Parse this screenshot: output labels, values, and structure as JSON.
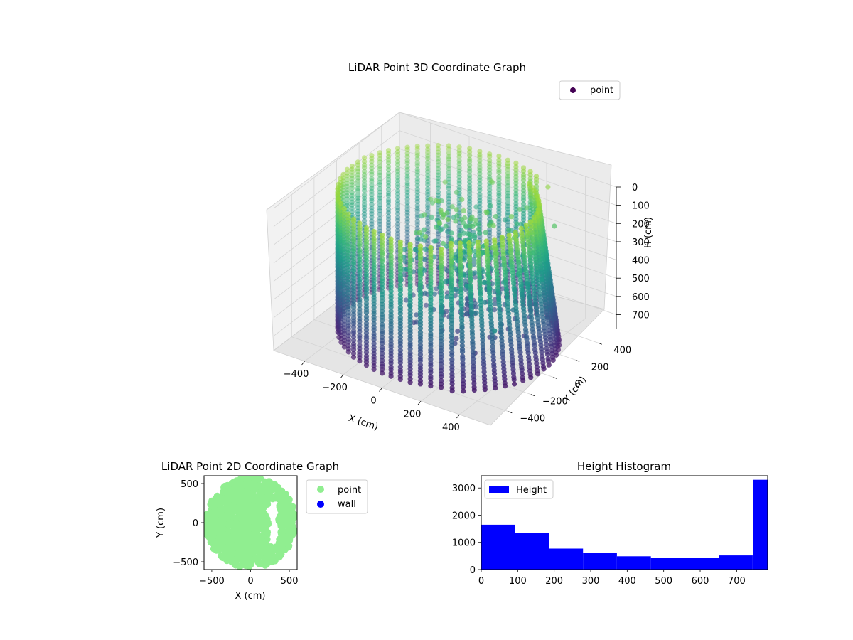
{
  "figure": {
    "chart_3d_title": "LiDAR Point 3D Coordinate Graph",
    "chart_2d_title": "LiDAR Point 2D Coordinate Graph",
    "hist_title": "Height Histogram"
  },
  "chart_data": [
    {
      "type": "scatter",
      "projection": "3d",
      "title": "LiDAR Point 3D Coordinate Graph",
      "xlabel": "X (cm)",
      "ylabel": "Y (cm)",
      "zlabel": "H (cm)",
      "x_ticks": [
        "−400",
        "−200",
        "0",
        "200",
        "400"
      ],
      "y_ticks": [
        "−400",
        "−200",
        "0",
        "200",
        "400"
      ],
      "z_ticks": [
        "0",
        "100",
        "200",
        "300",
        "400",
        "500",
        "600",
        "700"
      ],
      "xlim": [
        -560,
        560
      ],
      "ylim": [
        -560,
        560
      ],
      "zlim": [
        0,
        780
      ],
      "z_axis_inverted": true,
      "legend": {
        "position": "top-right",
        "entries": [
          "point"
        ]
      },
      "colormap": "viridis",
      "series": [
        {
          "name": "point",
          "description_shape": "cylindrical wall of scan rings, radius ~480 cm, height 0-780 cm, plus a cluster of interior points",
          "wall_radius": 480,
          "height_range": [
            0,
            780
          ],
          "sample_points": [
            {
              "x": 300,
              "y": 400,
              "z": 20
            },
            {
              "x": 420,
              "y": 250,
              "z": 120
            },
            {
              "x": 470,
              "y": 50,
              "z": 300
            },
            {
              "x": 350,
              "y": -100,
              "z": 520
            },
            {
              "x": 500,
              "y": -420,
              "z": 350
            },
            {
              "x": -120,
              "y": 80,
              "z": 90
            },
            {
              "x": 0,
              "y": 150,
              "z": 80
            }
          ]
        }
      ],
      "grid": true
    },
    {
      "type": "scatter",
      "title": "LiDAR Point 2D Coordinate Graph",
      "xlabel": "X (cm)",
      "ylabel": "Y (cm)",
      "x_ticks": [
        "−500",
        "0",
        "500"
      ],
      "y_ticks": [
        "500",
        "0",
        "−500"
      ],
      "xlim": [
        -600,
        600
      ],
      "ylim": [
        -600,
        600
      ],
      "legend": {
        "position": "outside-right",
        "entries": [
          "point",
          "wall"
        ]
      },
      "series": [
        {
          "name": "point",
          "color": "#90ee90",
          "description_shape": "filled disk radius ~580 cm with notched right side"
        },
        {
          "name": "wall",
          "color": "#0000ff",
          "values": []
        }
      ]
    },
    {
      "type": "bar",
      "subtype": "histogram",
      "title": "Height Histogram",
      "x_ticks": [
        "0",
        "100",
        "200",
        "300",
        "400",
        "500",
        "600",
        "700"
      ],
      "y_ticks": [
        "0",
        "1000",
        "2000",
        "3000"
      ],
      "xlim": [
        0,
        785
      ],
      "ylim": [
        0,
        3450
      ],
      "legend": {
        "position": "top-left",
        "entries": [
          "Height"
        ]
      },
      "series": [
        {
          "name": "Height",
          "color": "#0000ff",
          "bin_edges": [
            0,
            93,
            186,
            279,
            372,
            465,
            558,
            651,
            744,
            785
          ],
          "values": [
            1650,
            1350,
            770,
            600,
            490,
            420,
            420,
            520,
            3300
          ]
        }
      ]
    }
  ]
}
